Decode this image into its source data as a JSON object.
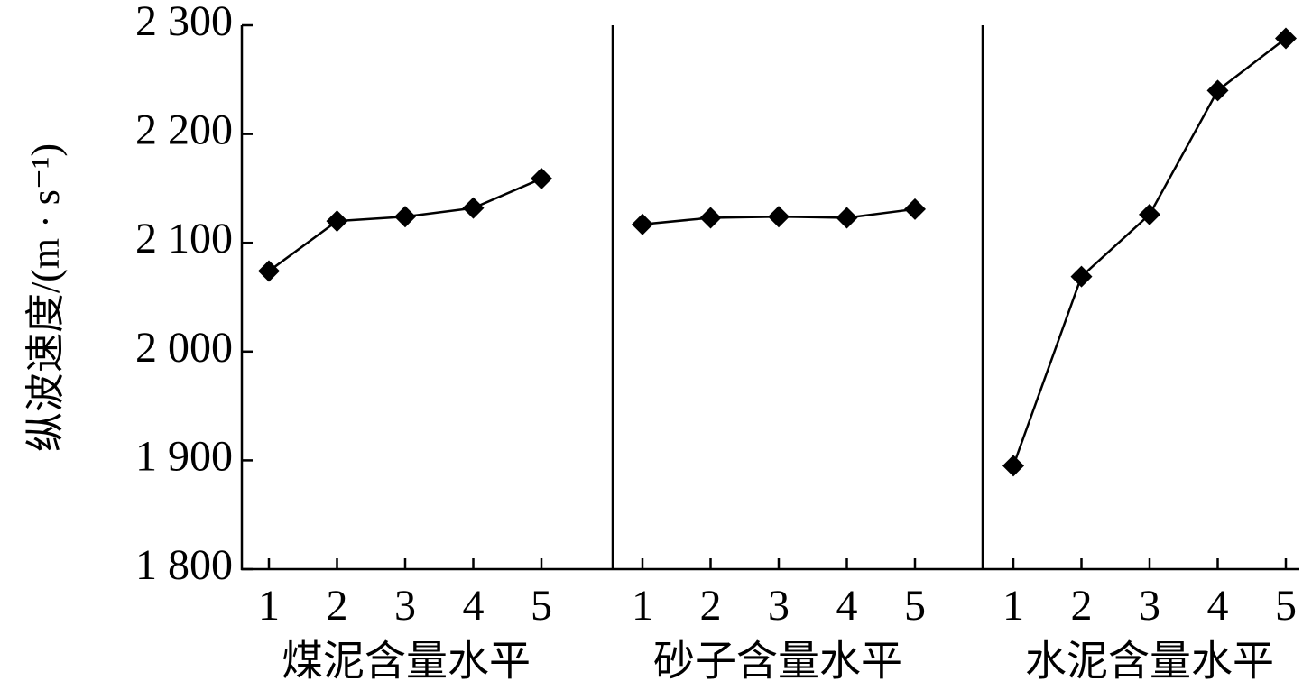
{
  "chart_data": [
    {
      "type": "line",
      "x_label": "煤泥含量水平",
      "y_label": "纵波速度/(m · s⁻¹)",
      "categories": [
        "1",
        "2",
        "3",
        "4",
        "5"
      ],
      "series": [
        {
          "color": "#000000",
          "values": [
            2074,
            2120,
            2124,
            2132,
            2159
          ]
        }
      ],
      "ylim": [
        1800,
        2300
      ],
      "yticks": [
        {
          "value": 1800,
          "label": "1 800"
        },
        {
          "value": 1900,
          "label": "1 900"
        },
        {
          "value": 2000,
          "label": "2 000"
        },
        {
          "value": 2100,
          "label": "2 100"
        },
        {
          "value": 2200,
          "label": "2 200"
        },
        {
          "value": 2300,
          "label": "2 300"
        }
      ]
    },
    {
      "type": "line",
      "x_label": "砂子含量水平",
      "categories": [
        "1",
        "2",
        "3",
        "4",
        "5"
      ],
      "series": [
        {
          "color": "#000000",
          "values": [
            2117,
            2123,
            2124,
            2123,
            2131
          ]
        }
      ],
      "ylim": [
        1800,
        2300
      ]
    },
    {
      "type": "line",
      "x_label": "水泥含量水平",
      "categories": [
        "1",
        "2",
        "3",
        "4",
        "5"
      ],
      "series": [
        {
          "color": "#000000",
          "values": [
            1895,
            2069,
            2126,
            2240,
            2288
          ]
        }
      ],
      "ylim": [
        1800,
        2300
      ]
    }
  ]
}
